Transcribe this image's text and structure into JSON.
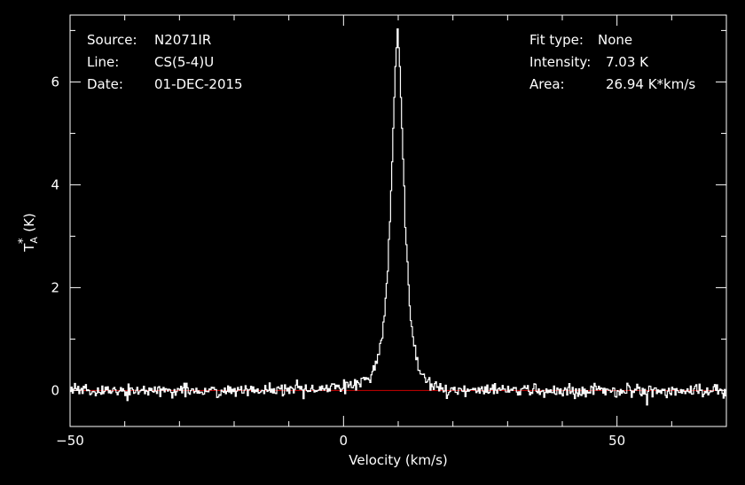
{
  "colors": {
    "background": "#000000",
    "foreground": "#ffffff",
    "baseline": "#cc0000"
  },
  "info_left": [
    {
      "key": "Source:",
      "value": "N2071IR"
    },
    {
      "key": "Line:",
      "value": "CS(5-4)U"
    },
    {
      "key": "Date:",
      "value": "01-DEC-2015"
    }
  ],
  "info_right": [
    {
      "key": "Fit type:",
      "value": "None"
    },
    {
      "key": "Intensity:",
      "value": "7.03 K"
    },
    {
      "key": "Area:",
      "value": "26.94 K*km/s"
    }
  ],
  "chart_data": {
    "type": "line",
    "title": "",
    "xlabel": "Velocity (km/s)",
    "ylabel": "T",
    "ylabel_sub": "A",
    "ylabel_sup": "*",
    "ylabel_unit": " (K)",
    "xlim": [
      -50,
      70
    ],
    "ylim": [
      -0.7,
      7.3
    ],
    "x_ticks": [
      -50,
      0,
      50
    ],
    "x_tick_labels": [
      "−50",
      "0",
      "50"
    ],
    "y_ticks": [
      0,
      2,
      4,
      6
    ],
    "y_tick_labels": [
      "0",
      "2",
      "4",
      "6"
    ],
    "x_minor_step": 10,
    "y_minor_step": 1,
    "grid": false,
    "baseline_y": 0,
    "line_profile": {
      "peak_velocity": 9.9,
      "peak_intensity": 7.03,
      "integrated_area": 26.94,
      "velocity_step": 0.2,
      "noise_rms": 0.06
    },
    "series": [
      {
        "name": "",
        "x": [
          -50,
          -45,
          -40,
          -35,
          -30,
          -25,
          -20,
          -15,
          -10,
          -5,
          0,
          2,
          4,
          5,
          6,
          7,
          7.5,
          8,
          8.5,
          9,
          9.5,
          9.9,
          10.3,
          10.8,
          11.3,
          11.8,
          12.3,
          13,
          14,
          15,
          16,
          17,
          18,
          20,
          25,
          30,
          35,
          40,
          45,
          50,
          55,
          60,
          65,
          70
        ],
        "y": [
          0,
          0,
          0,
          0,
          0,
          0,
          0,
          0,
          0,
          0.02,
          0.05,
          0.12,
          0.22,
          0.32,
          0.55,
          0.95,
          1.5,
          2.2,
          3.3,
          4.8,
          6.3,
          7.03,
          6.3,
          4.8,
          3.3,
          2.2,
          1.4,
          0.8,
          0.4,
          0.22,
          0.12,
          0.06,
          0.03,
          0.01,
          0,
          0,
          0,
          0,
          0,
          0,
          0,
          0,
          0,
          0
        ]
      }
    ]
  }
}
